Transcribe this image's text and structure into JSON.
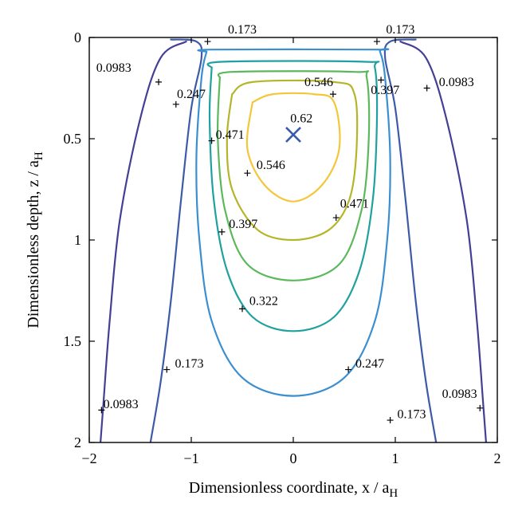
{
  "chart_data": {
    "type": "contour",
    "xlabel": "Dimensionless coordinate, x / a",
    "xlabel_sub": "H",
    "ylabel": "Dimensionless depth, z / a",
    "ylabel_sub": "H",
    "xlim": [
      -2,
      2
    ],
    "ylim": [
      2,
      0
    ],
    "y_inverted": true,
    "x_ticks": [
      -2,
      -1,
      0,
      1,
      2
    ],
    "x_tick_labels": [
      "−2",
      "−1",
      "0",
      "1",
      "2"
    ],
    "y_ticks": [
      0,
      0.5,
      1,
      1.5,
      2
    ],
    "y_tick_labels": [
      "0",
      "0.5",
      "1",
      "1.5",
      "2"
    ],
    "grid": false,
    "levels": [
      {
        "value": "0.0983",
        "color": "#433f94",
        "curves": [
          [
            [
              -1.05,
              0.02
            ],
            [
              -1.3,
              0.1
            ],
            [
              -1.5,
              0.4
            ],
            [
              -1.7,
              0.9
            ],
            [
              -1.8,
              1.4
            ],
            [
              -1.86,
              1.8
            ],
            [
              -1.89,
              2.0
            ]
          ],
          [
            [
              1.05,
              0.02
            ],
            [
              1.3,
              0.1
            ],
            [
              1.5,
              0.4
            ],
            [
              1.7,
              0.9
            ],
            [
              1.8,
              1.4
            ],
            [
              1.86,
              1.8
            ],
            [
              1.89,
              2.0
            ]
          ]
        ],
        "markers": [
          [
            -1.32,
            0.22
          ],
          [
            1.31,
            0.25
          ],
          [
            -1.88,
            1.84
          ],
          [
            1.83,
            1.83
          ]
        ]
      },
      {
        "value": "0.173",
        "color": "#3d5aa8",
        "curves": [
          [
            [
              -1.2,
              0.01
            ],
            [
              -0.95,
              0.02
            ],
            [
              -0.9,
              0.1
            ],
            [
              -1.0,
              0.35
            ],
            [
              -1.1,
              0.8
            ],
            [
              -1.2,
              1.3
            ],
            [
              -1.3,
              1.7
            ],
            [
              -1.4,
              2.0
            ]
          ],
          [
            [
              1.2,
              0.01
            ],
            [
              0.95,
              0.02
            ],
            [
              0.9,
              0.1
            ],
            [
              1.0,
              0.35
            ],
            [
              1.1,
              0.8
            ],
            [
              1.2,
              1.3
            ],
            [
              1.3,
              1.7
            ],
            [
              1.4,
              2.0
            ]
          ]
        ],
        "markers": [
          [
            -0.84,
            0.02
          ],
          [
            0.82,
            0.02
          ],
          [
            -1.24,
            1.64
          ],
          [
            0.95,
            1.89
          ]
        ]
      },
      {
        "value": "0.247",
        "color": "#3b8fd0",
        "curves": [
          [
            [
              -0.85,
              0.07
            ],
            [
              -0.9,
              0.2
            ],
            [
              -0.95,
              0.6
            ],
            [
              -0.92,
              1.0
            ],
            [
              -0.8,
              1.4
            ],
            [
              -0.5,
              1.68
            ],
            [
              0,
              1.77
            ],
            [
              0.5,
              1.68
            ],
            [
              0.8,
              1.4
            ],
            [
              0.92,
              1.0
            ],
            [
              0.95,
              0.6
            ],
            [
              0.9,
              0.2
            ],
            [
              0.85,
              0.07
            ],
            [
              0.8,
              0.06
            ],
            [
              -0.8,
              0.06
            ],
            [
              -0.85,
              0.07
            ]
          ]
        ],
        "markers": [
          [
            -1.15,
            0.33
          ],
          [
            0.54,
            1.64
          ]
        ]
      },
      {
        "value": "0.322",
        "color": "#21a0a0",
        "curves": [
          [
            [
              -0.8,
              0.15
            ],
            [
              -0.82,
              0.4
            ],
            [
              -0.78,
              0.8
            ],
            [
              -0.65,
              1.15
            ],
            [
              -0.4,
              1.38
            ],
            [
              0,
              1.45
            ],
            [
              0.4,
              1.38
            ],
            [
              0.65,
              1.15
            ],
            [
              0.78,
              0.8
            ],
            [
              0.82,
              0.4
            ],
            [
              0.8,
              0.15
            ],
            [
              0.7,
              0.12
            ],
            [
              -0.7,
              0.12
            ],
            [
              -0.8,
              0.15
            ]
          ]
        ],
        "markers": [
          [
            -0.5,
            1.34
          ]
        ]
      },
      {
        "value": "0.397",
        "color": "#5cb85c",
        "curves": [
          [
            [
              -0.72,
              0.2
            ],
            [
              -0.74,
              0.5
            ],
            [
              -0.67,
              0.85
            ],
            [
              -0.45,
              1.12
            ],
            [
              0,
              1.2
            ],
            [
              0.45,
              1.12
            ],
            [
              0.67,
              0.85
            ],
            [
              0.74,
              0.5
            ],
            [
              0.72,
              0.2
            ],
            [
              0.6,
              0.17
            ],
            [
              -0.6,
              0.17
            ],
            [
              -0.72,
              0.2
            ]
          ]
        ],
        "markers": [
          [
            0.86,
            0.21
          ],
          [
            -0.7,
            0.96
          ]
        ]
      },
      {
        "value": "0.471",
        "color": "#b5b52a",
        "curves": [
          [
            [
              -0.6,
              0.28
            ],
            [
              -0.65,
              0.5
            ],
            [
              -0.6,
              0.75
            ],
            [
              -0.35,
              0.95
            ],
            [
              0,
              1.0
            ],
            [
              0.35,
              0.95
            ],
            [
              0.55,
              0.8
            ],
            [
              0.62,
              0.55
            ],
            [
              0.6,
              0.28
            ],
            [
              0.4,
              0.22
            ],
            [
              -0.4,
              0.22
            ],
            [
              -0.6,
              0.28
            ]
          ]
        ],
        "markers": [
          [
            -0.8,
            0.51
          ],
          [
            0.42,
            0.89
          ]
        ]
      },
      {
        "value": "0.546",
        "color": "#f3c739",
        "curves": [
          [
            [
              -0.4,
              0.32
            ],
            [
              -0.45,
              0.55
            ],
            [
              -0.28,
              0.73
            ],
            [
              0,
              0.81
            ],
            [
              0.28,
              0.73
            ],
            [
              0.45,
              0.55
            ],
            [
              0.4,
              0.32
            ],
            [
              0.2,
              0.28
            ],
            [
              -0.2,
              0.28
            ],
            [
              -0.4,
              0.32
            ]
          ]
        ],
        "markers": [
          [
            0.39,
            0.28
          ],
          [
            -0.45,
            0.67
          ]
        ]
      }
    ],
    "max_point": {
      "x": 0,
      "y": 0.48,
      "label": "0.62",
      "color": "#3a5ba9"
    },
    "labels": [
      {
        "text": "0.173",
        "x": -0.5,
        "y": -0.02
      },
      {
        "text": "0.173",
        "x": 1.05,
        "y": -0.02
      },
      {
        "text": "0.0983",
        "x": -1.76,
        "y": 0.17
      },
      {
        "text": "0.0983",
        "x": 1.6,
        "y": 0.24
      },
      {
        "text": "0.247",
        "x": -1.0,
        "y": 0.3
      },
      {
        "text": "0.546",
        "x": 0.25,
        "y": 0.24
      },
      {
        "text": "0.397",
        "x": 0.9,
        "y": 0.28
      },
      {
        "text": "0.62",
        "x": 0.08,
        "y": 0.42
      },
      {
        "text": "0.471",
        "x": -0.62,
        "y": 0.5
      },
      {
        "text": "0.546",
        "x": -0.22,
        "y": 0.65
      },
      {
        "text": "0.471",
        "x": 0.6,
        "y": 0.84
      },
      {
        "text": "0.397",
        "x": -0.49,
        "y": 0.94
      },
      {
        "text": "0.322",
        "x": -0.29,
        "y": 1.32
      },
      {
        "text": "0.173",
        "x": -1.02,
        "y": 1.63
      },
      {
        "text": "0.247",
        "x": 0.75,
        "y": 1.63
      },
      {
        "text": "0.0983",
        "x": -1.69,
        "y": 1.83
      },
      {
        "text": "0.173",
        "x": 1.16,
        "y": 1.88
      },
      {
        "text": "0.0983",
        "x": 1.63,
        "y": 1.78
      }
    ]
  }
}
